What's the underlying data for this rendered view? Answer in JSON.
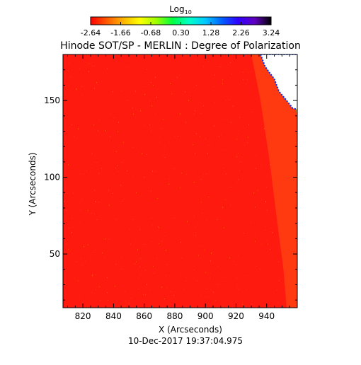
{
  "chart_data": {
    "type": "heatmap",
    "title": "Hinode SOT/SP - MERLIN : Degree of Polarization",
    "xlabel": "X (Arcseconds)",
    "ylabel": "Y (Arcseconds)",
    "timestamp": "10-Dec-2017 19:37:04.975",
    "colorbar": {
      "label_base": "Log",
      "label_sub": "10",
      "tick_labels": [
        "-2.64",
        "-1.66",
        "-0.68",
        "0.30",
        "1.28",
        "2.26",
        "3.24"
      ],
      "range": [
        -2.64,
        3.24
      ],
      "gradient": [
        "#ff0000",
        "#ff5a00",
        "#ffb400",
        "#ffff00",
        "#a0ff00",
        "#00ff40",
        "#00ffc8",
        "#00c8ff",
        "#0060ff",
        "#3000ff",
        "#6000c0",
        "#000000"
      ]
    },
    "xlim": [
      807,
      960
    ],
    "ylim": [
      15,
      180
    ],
    "x_ticks": [
      820,
      840,
      860,
      880,
      900,
      920,
      940
    ],
    "y_ticks": [
      50,
      100,
      150
    ],
    "x_tick_labels": [
      "820",
      "840",
      "860",
      "880",
      "900",
      "920",
      "940"
    ],
    "y_tick_labels": [
      "50",
      "100",
      "150"
    ],
    "field_color": "#ff1a10",
    "limb": {
      "description_points": [
        [
          930,
          180
        ],
        [
          936,
          150
        ],
        [
          942,
          110
        ],
        [
          947,
          70
        ],
        [
          951,
          40
        ],
        [
          953,
          15
        ]
      ],
      "colors": [
        "#ff3a10",
        "#ff8a00",
        "#ffd000",
        "#ffff30",
        "#c8ff20",
        "#70ff30",
        "#30ff60"
      ]
    },
    "off_disk_color": "#ffffff",
    "off_disk_edge_color": "#0030ff"
  }
}
